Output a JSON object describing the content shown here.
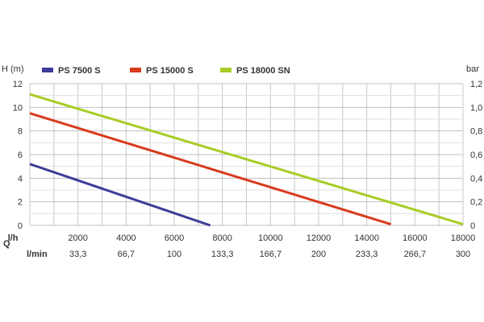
{
  "chart_data": {
    "type": "line",
    "y_left_label": "H (m)",
    "y_right_label": "bar",
    "q_label": "Q",
    "x_row_label": "l/h",
    "x2_row_label": "l/min",
    "xlim": [
      0,
      18000
    ],
    "ylim": [
      0,
      12
    ],
    "ylim_right": [
      0,
      1.2
    ],
    "x_ticks": [
      2000,
      4000,
      6000,
      8000,
      10000,
      12000,
      14000,
      16000,
      18000
    ],
    "x2_ticks": [
      "33,3",
      "66,7",
      "100",
      "133,3",
      "166,7",
      "200",
      "233,3",
      "266,7",
      "300"
    ],
    "y_ticks": [
      0,
      2,
      4,
      6,
      8,
      10,
      12
    ],
    "y_right_ticks": [
      "0",
      "0,2",
      "0,4",
      "0,6",
      "0,8",
      "1,0",
      "1,2"
    ],
    "grid": true,
    "legend_position": "top",
    "series": [
      {
        "name": "PS 7500 S",
        "color": "#3c3c98",
        "x": [
          0,
          7500
        ],
        "y": [
          5.2,
          0
        ]
      },
      {
        "name": "PS 15000 S",
        "color": "#d83a1d",
        "x": [
          0,
          15000
        ],
        "y": [
          9.5,
          0.1
        ]
      },
      {
        "name": "PS 18000 SN",
        "color": "#a8cc25",
        "x": [
          0,
          18000
        ],
        "y": [
          11.1,
          0.1
        ]
      }
    ]
  }
}
